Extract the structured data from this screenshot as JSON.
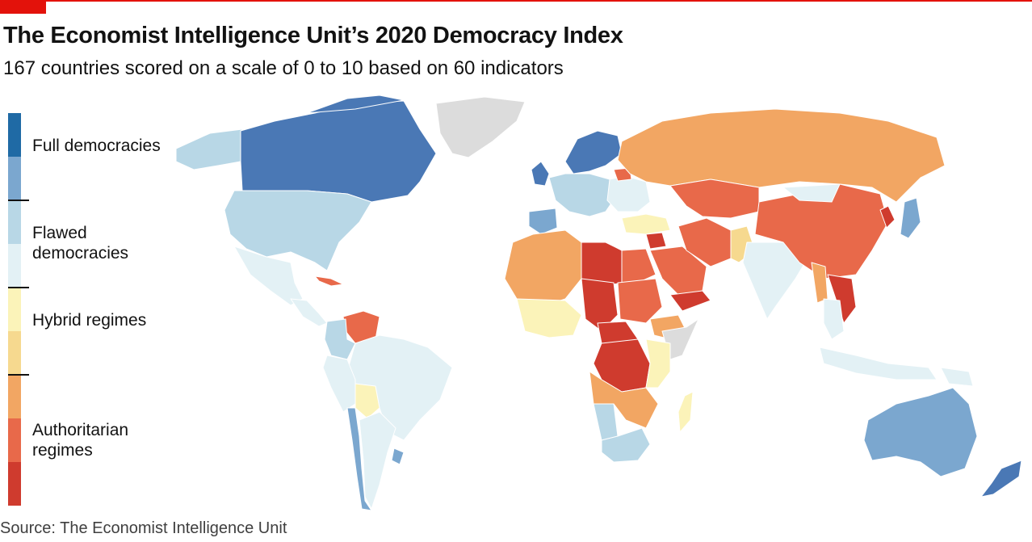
{
  "header": {
    "title": "The Economist Intelligence Unit’s 2020 Democracy Index",
    "subtitle": "167 countries scored on a scale of 0 to 10 based on 60 indicators"
  },
  "legend": {
    "categories": [
      {
        "label": "Full democracies",
        "colors": [
          "#1f6aa5",
          "#7ba7cf"
        ]
      },
      {
        "label": "Flawed democracies",
        "colors": [
          "#b8d7e6",
          "#e3f1f5"
        ]
      },
      {
        "label": "Hybrid regimes",
        "colors": [
          "#fbf3b9",
          "#f6d98f"
        ]
      },
      {
        "label": "Authoritarian regimes",
        "colors": [
          "#f2a663",
          "#e8694a",
          "#cf3b2e"
        ]
      }
    ]
  },
  "map": {
    "no_data_color": "#dcdcdc",
    "ocean_color": "#ffffff",
    "region_colors": {
      "canada": "#4a78b5",
      "usa": "#b8d7e6",
      "alaska": "#b8d7e6",
      "greenland": "#dcdcdc",
      "mexico": "#e3f1f5",
      "central_america": "#e3f1f5",
      "cuba": "#e8694a",
      "venezuela": "#e8694a",
      "colombia": "#b8d7e6",
      "brazil": "#e3f1f5",
      "peru": "#e3f1f5",
      "bolivia": "#fbf3b9",
      "argentina": "#e3f1f5",
      "chile": "#7ba7cf",
      "uruguay": "#7ba7cf",
      "scandinavia": "#4a78b5",
      "western_europe": "#b8d7e6",
      "uk": "#4a78b5",
      "iberia": "#7ba7cf",
      "eastern_europe": "#e3f1f5",
      "russia": "#f2a663",
      "belarus": "#e8694a",
      "turkey": "#fbf3b9",
      "north_africa": "#f2a663",
      "libya": "#cf3b2e",
      "egypt": "#e8694a",
      "west_africa": "#f2a663",
      "sahel": "#fbf3b9",
      "chad": "#cf3b2e",
      "sudan": "#e8694a",
      "car": "#cf3b2e",
      "drc": "#cf3b2e",
      "ethiopia": "#f2a663",
      "somalia": "#dcdcdc",
      "east_africa": "#fbf3b9",
      "southern_africa": "#f2a663",
      "south_africa": "#b8d7e6",
      "namibia": "#b8d7e6",
      "madagascar": "#fbf3b9",
      "saudi_arabia": "#e8694a",
      "iran": "#e8694a",
      "yemen": "#cf3b2e",
      "syria": "#cf3b2e",
      "central_asia": "#e8694a",
      "india": "#e3f1f5",
      "pakistan": "#f6d98f",
      "china": "#e8694a",
      "mongolia": "#e3f1f5",
      "korea_north": "#cf3b2e",
      "japan": "#7ba7cf",
      "southeast_asia": "#e3f1f5",
      "myanmar": "#f2a663",
      "laos_vietnam": "#cf3b2e",
      "indonesia": "#e3f1f5",
      "australia": "#7ba7cf",
      "new_zealand": "#4a78b5",
      "png": "#e3f1f5"
    }
  },
  "source": "Source: The Economist Intelligence Unit"
}
